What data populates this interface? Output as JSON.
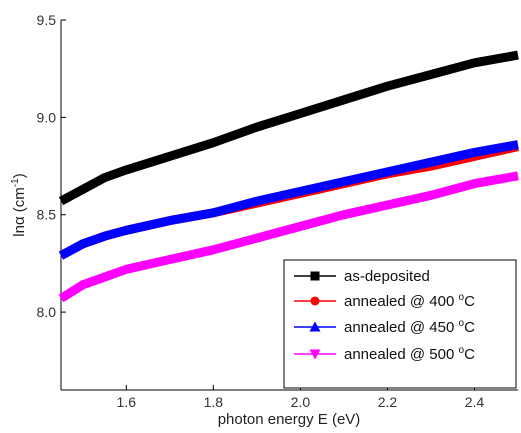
{
  "chart_data": {
    "type": "line",
    "title": "",
    "xlabel": "photon energy E (eV)",
    "ylabel": {
      "main": "lnα (cm",
      "sup": "-1",
      "tail": ")"
    },
    "xlim": [
      1.45,
      2.5
    ],
    "ylim": [
      7.6,
      9.5
    ],
    "x_ticks": [
      1.6,
      1.8,
      2.0,
      2.2,
      2.4
    ],
    "x_tick_labels": [
      "1.6",
      "1.8",
      "2.0",
      "2.2",
      "2.4"
    ],
    "y_ticks": [
      8.0,
      8.5,
      9.0,
      9.5
    ],
    "y_tick_labels": [
      "8.0",
      "8.5",
      "9.0",
      "9.5"
    ],
    "grid": false,
    "legend_position": "bottom-right",
    "series": [
      {
        "name": "as-deposited",
        "color": "#000000",
        "marker": "square",
        "points": [
          [
            1.45,
            8.57
          ],
          [
            1.5,
            8.63
          ],
          [
            1.55,
            8.69
          ],
          [
            1.6,
            8.73
          ],
          [
            1.7,
            8.8
          ],
          [
            1.8,
            8.87
          ],
          [
            1.9,
            8.95
          ],
          [
            2.0,
            9.02
          ],
          [
            2.1,
            9.09
          ],
          [
            2.2,
            9.16
          ],
          [
            2.3,
            9.22
          ],
          [
            2.4,
            9.28
          ],
          [
            2.5,
            9.32
          ]
        ]
      },
      {
        "name": "annealed @ 400 ",
        "name_sup": "o",
        "name_tail": "C",
        "color": "#ff0000",
        "marker": "circle",
        "points": [
          [
            1.45,
            8.29
          ],
          [
            1.5,
            8.35
          ],
          [
            1.55,
            8.39
          ],
          [
            1.6,
            8.42
          ],
          [
            1.7,
            8.47
          ],
          [
            1.8,
            8.51
          ],
          [
            1.9,
            8.56
          ],
          [
            2.0,
            8.61
          ],
          [
            2.1,
            8.66
          ],
          [
            2.2,
            8.71
          ],
          [
            2.3,
            8.75
          ],
          [
            2.4,
            8.8
          ],
          [
            2.5,
            8.85
          ]
        ]
      },
      {
        "name": "annealed @ 450 ",
        "name_sup": "o",
        "name_tail": "C",
        "color": "#0000ff",
        "marker": "triangle-up",
        "points": [
          [
            1.45,
            8.29
          ],
          [
            1.5,
            8.35
          ],
          [
            1.55,
            8.39
          ],
          [
            1.6,
            8.42
          ],
          [
            1.7,
            8.47
          ],
          [
            1.8,
            8.51
          ],
          [
            1.9,
            8.57
          ],
          [
            2.0,
            8.62
          ],
          [
            2.1,
            8.67
          ],
          [
            2.2,
            8.72
          ],
          [
            2.3,
            8.77
          ],
          [
            2.4,
            8.82
          ],
          [
            2.5,
            8.86
          ]
        ]
      },
      {
        "name": "annealed @ 500 ",
        "name_sup": "o",
        "name_tail": "C",
        "color": "#ff00ff",
        "marker": "triangle-down",
        "points": [
          [
            1.45,
            8.07
          ],
          [
            1.5,
            8.14
          ],
          [
            1.55,
            8.18
          ],
          [
            1.6,
            8.22
          ],
          [
            1.7,
            8.27
          ],
          [
            1.8,
            8.32
          ],
          [
            1.9,
            8.38
          ],
          [
            2.0,
            8.44
          ],
          [
            2.1,
            8.5
          ],
          [
            2.2,
            8.55
          ],
          [
            2.3,
            8.6
          ],
          [
            2.4,
            8.66
          ],
          [
            2.5,
            8.7
          ]
        ]
      }
    ]
  }
}
